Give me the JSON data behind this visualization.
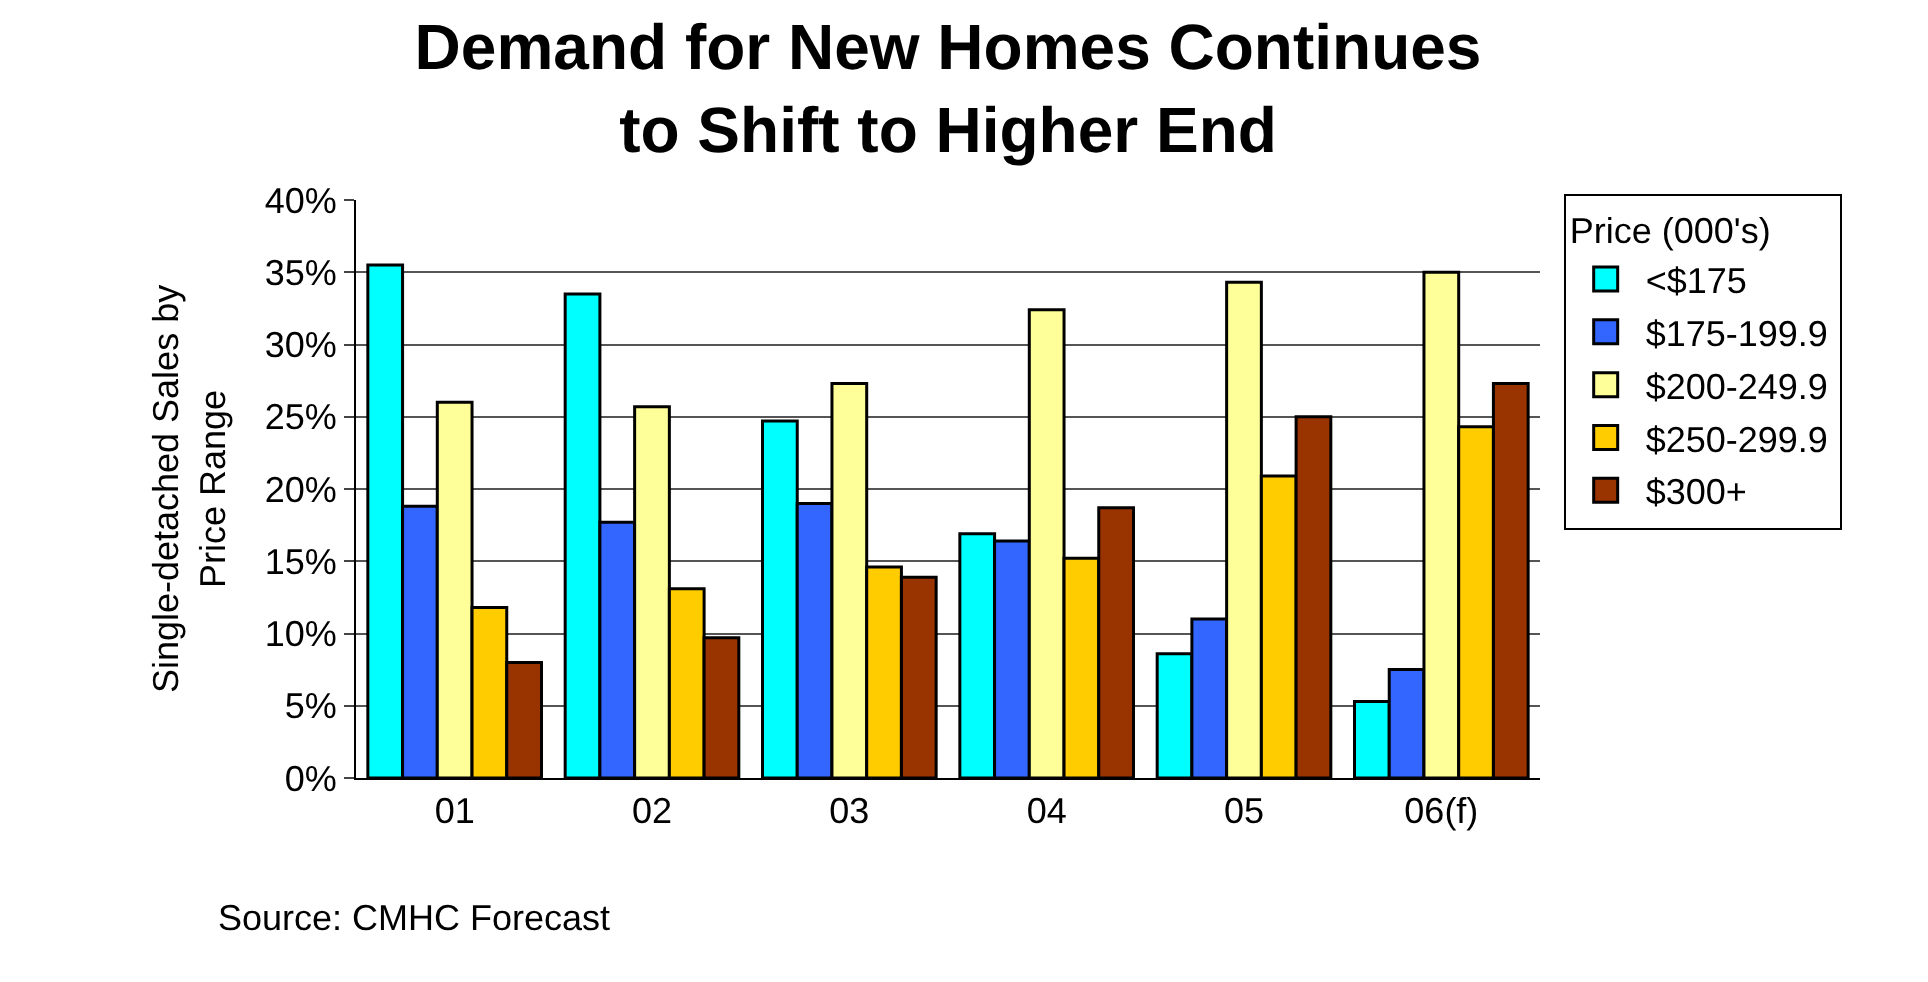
{
  "chart_data": {
    "type": "bar",
    "title": "Demand for New Homes Continues\nto Shift to Higher End",
    "ylabel": "Single-detached Sales by\nPrice Range",
    "legend_title": "Price (000's)",
    "annotations": [
      "Source: CMHC Forecast"
    ],
    "categories": [
      "01",
      "02",
      "03",
      "04",
      "05",
      "06(f)"
    ],
    "series": [
      {
        "name": "<$175",
        "color": "#00ffff",
        "values": [
          35.5,
          33.5,
          24.7,
          16.9,
          8.6,
          5.3
        ]
      },
      {
        "name": "$175-199.9",
        "color": "#3366ff",
        "values": [
          18.8,
          17.7,
          19,
          16.4,
          11,
          7.5
        ]
      },
      {
        "name": "$200-249.9",
        "color": "#ffff99",
        "values": [
          26,
          25.7,
          27.3,
          32.4,
          34.3,
          35
        ]
      },
      {
        "name": "$250-299.9",
        "color": "#ffcc00",
        "values": [
          11.8,
          13.1,
          14.6,
          15.2,
          20.9,
          24.3
        ]
      },
      {
        "name": "$300+",
        "color": "#993300",
        "values": [
          8,
          9.7,
          13.9,
          18.7,
          25,
          27.3
        ]
      }
    ],
    "ylim": [
      0,
      40
    ],
    "yticks": [
      {
        "value": 0,
        "label": "0%"
      },
      {
        "value": 5,
        "label": "5%"
      },
      {
        "value": 10,
        "label": "10%"
      },
      {
        "value": 15,
        "label": "15%"
      },
      {
        "value": 20,
        "label": "20%"
      },
      {
        "value": 25,
        "label": "25%"
      },
      {
        "value": 30,
        "label": "30%"
      },
      {
        "value": 35,
        "label": "35%"
      },
      {
        "value": 40,
        "label": "40%"
      }
    ],
    "grid": "y",
    "legend": "right"
  }
}
